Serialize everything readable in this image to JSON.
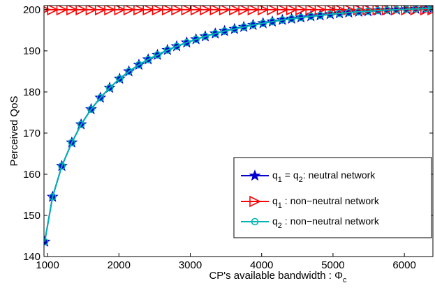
{
  "chart_data": {
    "type": "line",
    "xlabel": "CP's available bandwidth : Φ",
    "xlabel_sub": "c",
    "ylabel": "Perceived QoS",
    "xlim": [
      950,
      6400
    ],
    "ylim": [
      140,
      201
    ],
    "xticks": [
      1000,
      2000,
      3000,
      4000,
      5000,
      6000
    ],
    "yticks": [
      140,
      150,
      160,
      170,
      180,
      190,
      200
    ],
    "x_tick_labels": [
      "1000",
      "2000",
      "3000",
      "4000",
      "5000",
      "6000"
    ],
    "y_tick_labels": [
      "140",
      "150",
      "160",
      "170",
      "180",
      "190",
      "200"
    ],
    "grid": false,
    "legend_position": "bottom-right",
    "x": [
      960,
      1070,
      1200,
      1340,
      1470,
      1610,
      1740,
      1870,
      2010,
      2140,
      2280,
      2410,
      2540,
      2680,
      2810,
      2950,
      3080,
      3210,
      3350,
      3480,
      3620,
      3750,
      3880,
      4020,
      4150,
      4290,
      4420,
      4550,
      4690,
      4820,
      4960,
      5090,
      5220,
      5360,
      5490,
      5630,
      5760,
      5890,
      6030,
      6160,
      6300,
      6400
    ],
    "series": [
      {
        "name_parts": [
          "q",
          "1",
          " = q",
          "2",
          ": neutral network"
        ],
        "color": "#0000cc",
        "marker": "star",
        "values": [
          143.6,
          154.5,
          162.0,
          167.7,
          172.1,
          175.8,
          178.6,
          181.0,
          183.2,
          185.0,
          186.6,
          187.9,
          189.0,
          190.2,
          191.1,
          192.0,
          192.8,
          193.5,
          194.2,
          194.8,
          195.3,
          195.8,
          196.3,
          196.7,
          197.1,
          197.5,
          197.8,
          198.1,
          198.4,
          198.6,
          198.9,
          199.1,
          199.3,
          199.5,
          199.6,
          199.8,
          199.9,
          200.0,
          200.1,
          200.2,
          200.3,
          200.4
        ]
      },
      {
        "name_parts": [
          "q",
          "1",
          " : non−neutral network"
        ],
        "color": "#ff0000",
        "marker": "triangle-right",
        "values": [
          200,
          200,
          200,
          200,
          200,
          200,
          200,
          200,
          200,
          200,
          200,
          200,
          200,
          200,
          200,
          200,
          200,
          200,
          200,
          200,
          200,
          200,
          200,
          200,
          200,
          200,
          200,
          200,
          200,
          200,
          200,
          200,
          200,
          200,
          200,
          200,
          200,
          200,
          200,
          200,
          200,
          200
        ]
      },
      {
        "name_parts": [
          "q",
          "2",
          " : non−neutral network"
        ],
        "color": "#00b3b3",
        "marker": "circle",
        "values": [
          143.6,
          154.5,
          162.0,
          167.7,
          172.1,
          175.8,
          178.6,
          181.0,
          183.2,
          185.0,
          186.6,
          187.9,
          189.0,
          190.2,
          191.1,
          192.0,
          192.8,
          193.5,
          194.2,
          194.8,
          195.3,
          195.8,
          196.3,
          196.7,
          197.1,
          197.5,
          197.8,
          198.1,
          198.4,
          198.6,
          198.9,
          199.1,
          199.3,
          199.5,
          199.6,
          199.8,
          199.9,
          200.0,
          200.1,
          200.2,
          200.3,
          200.4
        ]
      }
    ]
  }
}
